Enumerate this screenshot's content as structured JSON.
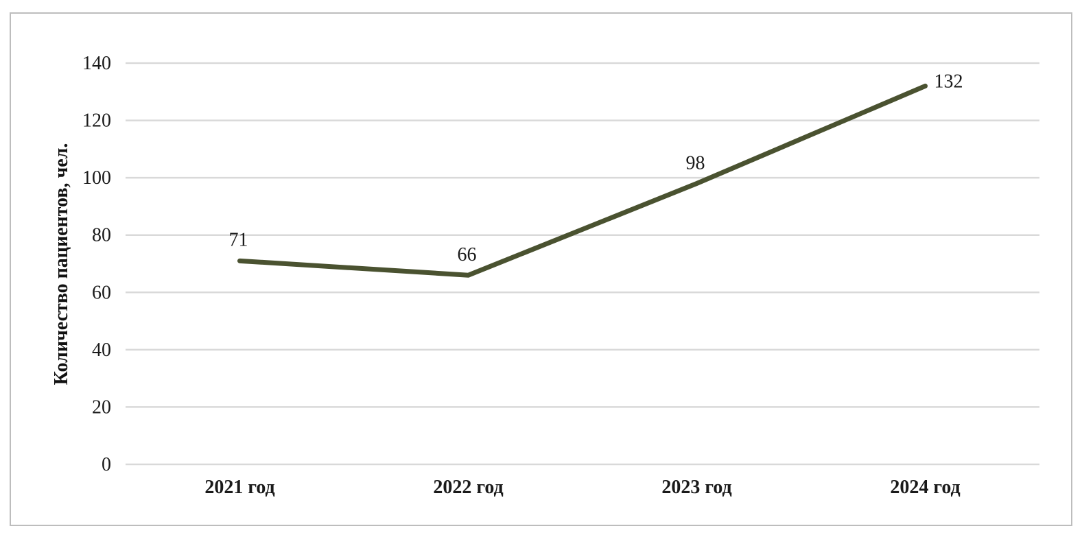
{
  "chart_data": {
    "type": "line",
    "categories": [
      "2021 год",
      "2022 год",
      "2023 год",
      "2024 год"
    ],
    "series": [
      {
        "values": [
          71,
          66,
          98,
          132
        ],
        "color": "#4a5230"
      }
    ],
    "data_labels": [
      "71",
      "66",
      "98",
      "132"
    ],
    "title": "",
    "xlabel": "",
    "ylabel": "Количество пациентов, чел.",
    "ylim": [
      0,
      140
    ],
    "yticks": [
      0,
      20,
      40,
      60,
      80,
      100,
      120,
      140
    ],
    "grid": "horizontal",
    "legend_position": "none"
  },
  "colors": {
    "line": "#4a5230",
    "gridline": "#d9d9d9",
    "text": "#1a1a1a",
    "frame_border": "#bdbdbd",
    "background": "#ffffff"
  }
}
